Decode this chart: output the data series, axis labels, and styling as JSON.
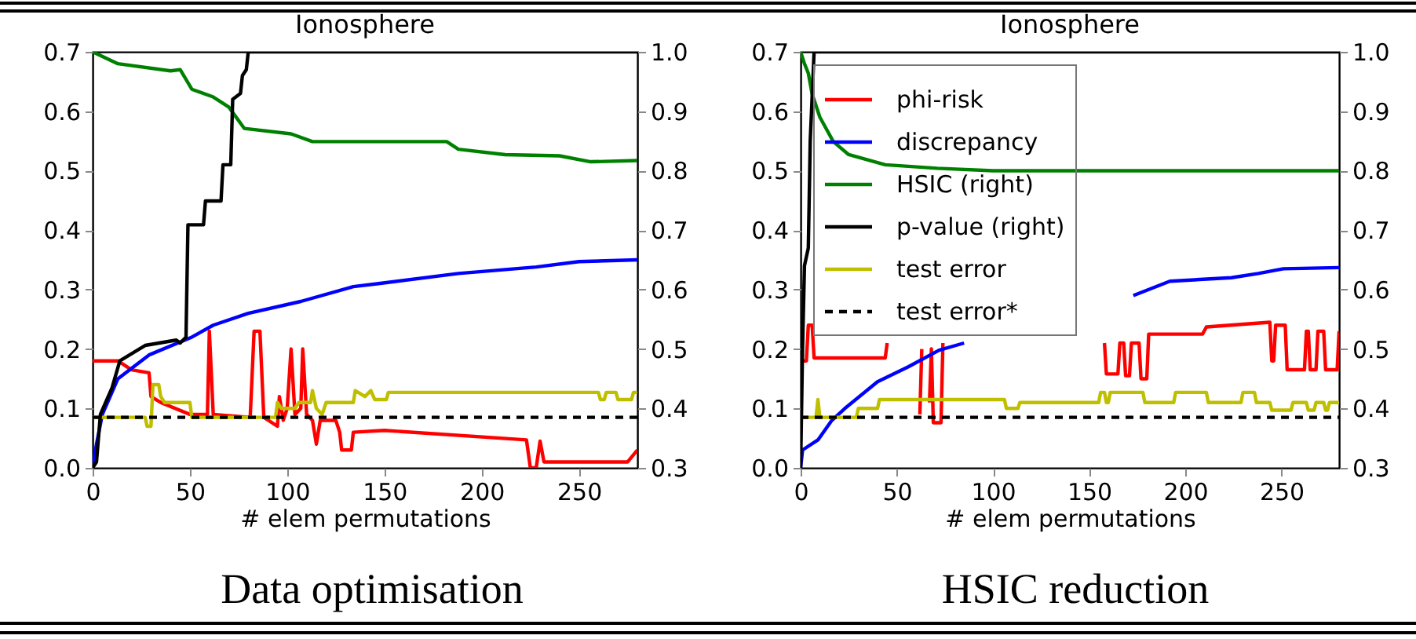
{
  "chart_data": [
    {
      "type": "line",
      "title": "Ionosphere",
      "xlabel": "# elem permutations",
      "annotations": [
        "Data optimisation"
      ],
      "xlim": [
        0,
        280
      ],
      "xticks": [
        0,
        50,
        100,
        150,
        200,
        250
      ],
      "ylim": [
        0,
        0.7
      ],
      "yticks": [
        {
          "value": 0,
          "label": "0.0"
        },
        0.1,
        0.2,
        0.3,
        0.4,
        0.5,
        0.6,
        0.7
      ],
      "y2lim": [
        0.3,
        1.0
      ],
      "y2ticks": [
        0.3,
        0.4,
        0.5,
        0.6,
        0.7,
        0.8,
        0.9,
        {
          "value": 1,
          "label": "1.0"
        }
      ],
      "legend": false,
      "series": [
        {
          "color": "#ff0000",
          "x": [
            0,
            13,
            20,
            29,
            30,
            35,
            50,
            59,
            60,
            62,
            81,
            83,
            86,
            88,
            95,
            96,
            98,
            100,
            102,
            104,
            107,
            108,
            110,
            113,
            115,
            117,
            125,
            127,
            128,
            133,
            134,
            150,
            223,
            225,
            228,
            230,
            232,
            275,
            280
          ],
          "values": [
            0.18,
            0.18,
            0.165,
            0.16,
            0.12,
            0.11,
            0.09,
            0.09,
            0.23,
            0.09,
            0.085,
            0.23,
            0.23,
            0.085,
            0.07,
            0.12,
            0.08,
            0.1,
            0.2,
            0.09,
            0.1,
            0.2,
            0.09,
            0.08,
            0.04,
            0.08,
            0.08,
            0.06,
            0.03,
            0.03,
            0.06,
            0.063,
            0.047,
            0.0,
            0.0,
            0.045,
            0.01,
            0.01,
            0.03
          ]
        },
        {
          "color": "#0000ff",
          "x": [
            0,
            2,
            5,
            13,
            29,
            51,
            62,
            80,
            107,
            134,
            147,
            188,
            228,
            250,
            280
          ],
          "values": [
            0,
            0.04,
            0.09,
            0.15,
            0.19,
            0.22,
            0.24,
            0.26,
            0.28,
            0.305,
            0.31,
            0.327,
            0.338,
            0.347,
            0.35
          ]
        },
        {
          "color": "#008000",
          "axis": "y2",
          "x": [
            0,
            13,
            40,
            45,
            51,
            62,
            70,
            78,
            102,
            113,
            182,
            188,
            212,
            240,
            256,
            280
          ],
          "values": [
            1.0,
            0.98,
            0.968,
            0.97,
            0.937,
            0.924,
            0.907,
            0.871,
            0.862,
            0.849,
            0.849,
            0.836,
            0.827,
            0.825,
            0.815,
            0.817
          ]
        },
        {
          "color": "#000000",
          "axis": "y2",
          "x": [
            0,
            2,
            4,
            10,
            14,
            27,
            43,
            45,
            48,
            49,
            57,
            58,
            66,
            67,
            71,
            72,
            76,
            77,
            79,
            80,
            280
          ],
          "values": [
            0.3,
            0.31,
            0.39,
            0.435,
            0.48,
            0.506,
            0.515,
            0.51,
            0.52,
            0.709,
            0.709,
            0.749,
            0.749,
            0.81,
            0.81,
            0.92,
            0.93,
            0.96,
            0.97,
            1.0,
            1.0
          ]
        },
        {
          "color": "#bfbf00",
          "x": [
            0,
            27,
            28,
            30,
            31,
            34,
            35,
            37,
            50,
            51,
            94,
            95,
            97,
            104,
            106,
            112,
            113,
            115,
            118,
            120,
            134,
            135,
            140,
            143,
            145,
            151,
            152,
            260,
            261,
            263,
            264,
            269,
            270,
            277,
            278,
            280
          ],
          "values": [
            0.085,
            0.085,
            0.07,
            0.07,
            0.14,
            0.14,
            0.12,
            0.11,
            0.11,
            0.085,
            0.085,
            0.11,
            0.1,
            0.1,
            0.11,
            0.11,
            0.13,
            0.1,
            0.09,
            0.11,
            0.11,
            0.13,
            0.12,
            0.13,
            0.115,
            0.115,
            0.127,
            0.127,
            0.115,
            0.115,
            0.127,
            0.127,
            0.115,
            0.115,
            0.127,
            0.127
          ]
        },
        {
          "color": "#000000",
          "line_style": "dashed",
          "x": [
            0,
            280
          ],
          "values": [
            0.085,
            0.085
          ]
        }
      ]
    },
    {
      "type": "line",
      "title": "Ionosphere",
      "xlabel": "# elem permutations",
      "annotations": [
        "HSIC reduction"
      ],
      "xlim": [
        0,
        280
      ],
      "xticks": [
        0,
        50,
        100,
        150,
        200,
        250
      ],
      "ylim": [
        0,
        0.7
      ],
      "yticks": [
        {
          "value": 0,
          "label": "0.0"
        },
        0.1,
        0.2,
        0.3,
        0.4,
        0.5,
        0.6,
        0.7
      ],
      "y2lim": [
        0.3,
        1.0
      ],
      "y2ticks": [
        0.3,
        0.4,
        0.5,
        0.6,
        0.7,
        0.8,
        0.9,
        {
          "value": 1,
          "label": "1.0"
        }
      ],
      "legend": "top left",
      "series": [
        {
          "name": "phi-risk",
          "color": "#ff0000",
          "x": [
            1,
            3,
            4,
            6,
            7,
            44,
            45,
            46,
            61,
            62,
            63,
            64,
            66,
            67,
            68,
            69,
            73,
            74,
            75,
            157,
            158,
            159,
            165,
            166,
            168,
            169,
            171,
            172,
            176,
            177,
            180,
            181,
            209,
            211,
            244,
            245,
            246,
            247,
            252,
            253,
            262,
            263,
            264,
            265,
            268,
            269,
            272,
            273,
            279,
            280
          ],
          "values": [
            0.18,
            0.18,
            0.24,
            0.24,
            0.185,
            0.185,
            0.21,
            null,
            null,
            0.09,
            0.2,
            null,
            null,
            0.11,
            0.2,
            0.076,
            0.076,
            0.21,
            null,
            null,
            0.21,
            0.158,
            0.158,
            0.21,
            0.21,
            0.155,
            0.155,
            0.21,
            0.21,
            0.15,
            0.15,
            0.225,
            0.225,
            0.237,
            0.245,
            0.18,
            0.18,
            0.24,
            0.24,
            0.165,
            0.165,
            0.23,
            0.23,
            0.165,
            0.165,
            0.23,
            0.23,
            0.165,
            0.165,
            0.23
          ]
        },
        {
          "name": "discrepancy",
          "color": "#0000ff",
          "x": [
            0,
            1,
            9,
            16,
            23,
            40,
            56,
            72,
            85,
            86,
            172,
            173,
            192,
            224,
            238,
            251,
            280
          ],
          "values": [
            0,
            0.03,
            0.047,
            0.079,
            0.1,
            0.145,
            0.17,
            0.198,
            0.21,
            null,
            null,
            0.29,
            0.314,
            0.32,
            0.327,
            0.335,
            0.337
          ]
        },
        {
          "name": "HSIC (right)",
          "color": "#008000",
          "axis": "y2",
          "x": [
            0,
            2,
            4,
            6,
            10,
            17,
            25,
            44,
            71,
            100,
            280
          ],
          "values": [
            1.0,
            0.98,
            0.964,
            0.929,
            0.89,
            0.849,
            0.827,
            0.81,
            0.804,
            0.8,
            0.8
          ]
        },
        {
          "name": "p-value (right)",
          "color": "#000000",
          "axis": "y2",
          "x": [
            0,
            1,
            2,
            4,
            5,
            7,
            280
          ],
          "values": [
            0.3,
            0.5,
            0.64,
            0.67,
            0.85,
            1.0,
            1.0
          ]
        },
        {
          "name": "test error",
          "color": "#bfbf00",
          "x": [
            0,
            8,
            9,
            10,
            29,
            30,
            40,
            41,
            106,
            107,
            113,
            114,
            155,
            156,
            158,
            159,
            160,
            161,
            178,
            179,
            194,
            195,
            211,
            212,
            229,
            230,
            236,
            237,
            244,
            245,
            255,
            256,
            263,
            264,
            267,
            268,
            272,
            273,
            274,
            275,
            280
          ],
          "values": [
            0.085,
            0.085,
            0.115,
            0.085,
            0.085,
            0.1,
            0.1,
            0.115,
            0.115,
            0.1,
            0.1,
            0.11,
            0.11,
            0.127,
            0.127,
            0.11,
            0.11,
            0.127,
            0.127,
            0.11,
            0.11,
            0.127,
            0.127,
            0.11,
            0.11,
            0.127,
            0.127,
            0.11,
            0.11,
            0.097,
            0.097,
            0.11,
            0.11,
            0.097,
            0.097,
            0.11,
            0.11,
            0.097,
            0.097,
            0.11,
            0.11
          ]
        },
        {
          "name": "test error*",
          "color": "#000000",
          "line_style": "dashed",
          "x": [
            0,
            280
          ],
          "values": [
            0.085,
            0.085
          ]
        }
      ]
    }
  ]
}
